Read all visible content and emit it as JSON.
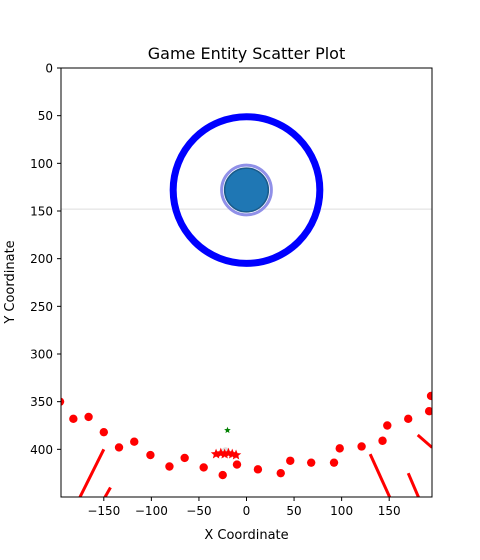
{
  "chart_data": {
    "type": "scatter",
    "title": "Game Entity Scatter Plot",
    "xlabel": "X Coordinate",
    "ylabel": "Y Coordinate",
    "xlim": [
      -195,
      195
    ],
    "ylim": [
      450,
      0
    ],
    "y_inverted": true,
    "x_ticks": [
      -150,
      -100,
      -50,
      0,
      50,
      100,
      150
    ],
    "x_tick_labels": [
      "−150",
      "−100",
      "−50",
      "0",
      "50",
      "100",
      "150"
    ],
    "y_ticks": [
      0,
      50,
      100,
      150,
      200,
      250,
      300,
      350,
      400
    ],
    "y_tick_labels": [
      "0",
      "50",
      "100",
      "150",
      "200",
      "250",
      "300",
      "350",
      "400"
    ],
    "grid": false,
    "reference_line": {
      "y": 148,
      "color": "#dddddd"
    },
    "ring": {
      "x": 0,
      "y": 128,
      "radius": 77,
      "color": "#0000ff"
    },
    "player": {
      "x": 0,
      "y": 128,
      "radius": 24,
      "color": "#1f77b4",
      "halo_color": "#9090e8"
    },
    "red_dots": {
      "color": "#ff0000",
      "points": [
        [
          -196,
          350
        ],
        [
          -182,
          368
        ],
        [
          -166,
          366
        ],
        [
          -150,
          382
        ],
        [
          -134,
          398
        ],
        [
          -118,
          392
        ],
        [
          -101,
          406
        ],
        [
          -81,
          418
        ],
        [
          -65,
          409
        ],
        [
          -45,
          419
        ],
        [
          -25,
          427
        ],
        [
          -10,
          416
        ],
        [
          12,
          421
        ],
        [
          36,
          425
        ],
        [
          46,
          412
        ],
        [
          68,
          414
        ],
        [
          92,
          414
        ],
        [
          98,
          399
        ],
        [
          121,
          397
        ],
        [
          143,
          391
        ],
        [
          148,
          375
        ],
        [
          170,
          368
        ],
        [
          192,
          360
        ],
        [
          194,
          344
        ]
      ]
    },
    "red_lines": {
      "color": "#ff0000",
      "segments": [
        [
          [
            -150,
            400
          ],
          [
            -185,
            470
          ]
        ],
        [
          [
            -143,
            440
          ],
          [
            -160,
            470
          ]
        ],
        [
          [
            130,
            405
          ],
          [
            155,
            460
          ]
        ],
        [
          [
            170,
            425
          ],
          [
            185,
            460
          ]
        ],
        [
          [
            180,
            385
          ],
          [
            195,
            398
          ]
        ]
      ]
    },
    "stars": {
      "color": "#ff0000",
      "points": [
        [
          -32,
          405
        ],
        [
          -27,
          404
        ],
        [
          -23,
          405
        ],
        [
          -19,
          404
        ],
        [
          -15,
          405
        ],
        [
          -11,
          406
        ]
      ]
    },
    "small_markers": [
      {
        "x": -20,
        "y": 380,
        "color": "#008000",
        "shape": "star"
      },
      {
        "x": -22,
        "y": 402,
        "color": "#dddddd",
        "shape": "circle"
      }
    ]
  }
}
